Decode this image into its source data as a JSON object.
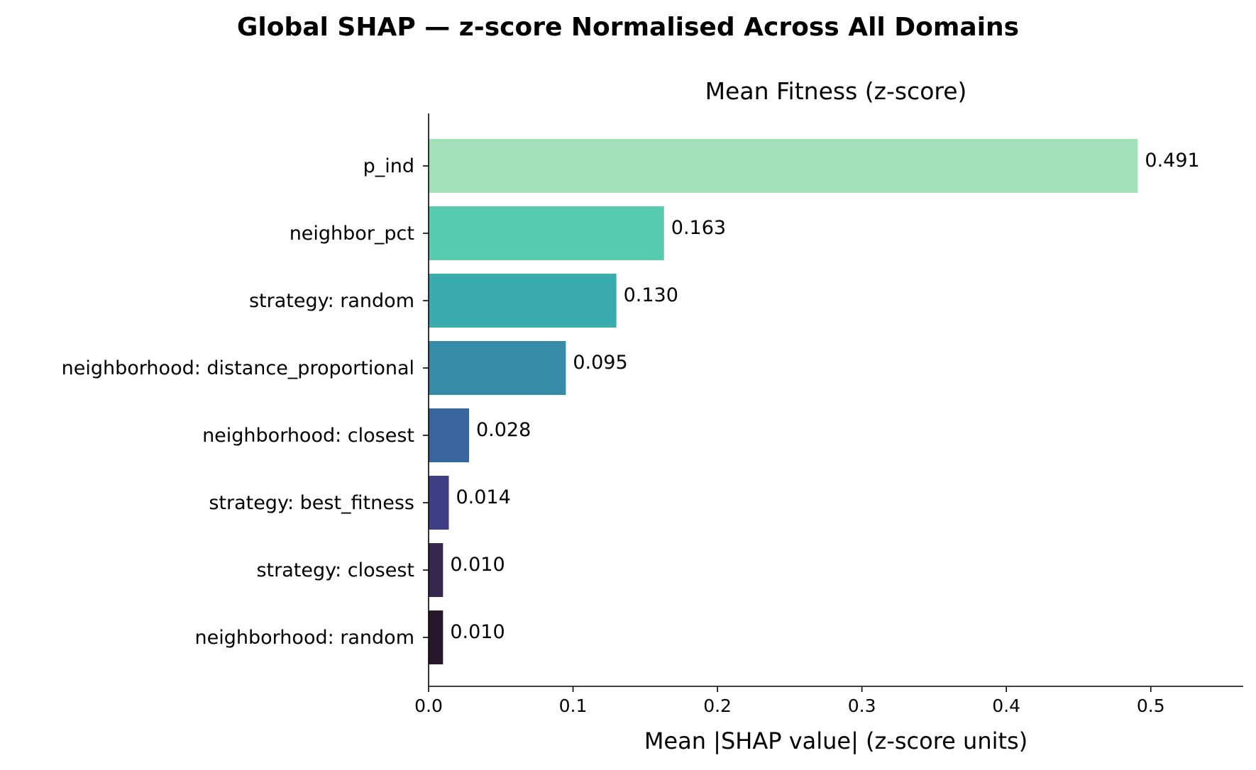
{
  "chart_data": {
    "type": "bar",
    "orientation": "horizontal",
    "suptitle": "Global SHAP — z-score Normalised Across All Domains",
    "title": "Mean Fitness (z-score)",
    "xlabel": "Mean |SHAP value|  (z-score units)",
    "ylabel": "",
    "xlim": [
      0,
      0.564
    ],
    "xticks": [
      0.0,
      0.1,
      0.2,
      0.3,
      0.4,
      0.5
    ],
    "xtick_labels": [
      "0.0",
      "0.1",
      "0.2",
      "0.3",
      "0.4",
      "0.5"
    ],
    "grid": false,
    "legend": "none",
    "categories": [
      "p_ind",
      "neighbor_pct",
      "strategy: random",
      "neighborhood: distance_proportional",
      "neighborhood: closest",
      "strategy: best_fitness",
      "strategy: closest",
      "neighborhood: random"
    ],
    "values": [
      0.491,
      0.163,
      0.13,
      0.095,
      0.028,
      0.014,
      0.01,
      0.01
    ],
    "value_labels": [
      "0.491",
      "0.163",
      "0.130",
      "0.095",
      "0.028",
      "0.014",
      "0.010",
      "0.010"
    ],
    "colors": [
      "#a1e0b8",
      "#56cbad",
      "#3aabad",
      "#368ba6",
      "#38659c",
      "#3e3f84",
      "#36274f",
      "#26172b"
    ]
  }
}
